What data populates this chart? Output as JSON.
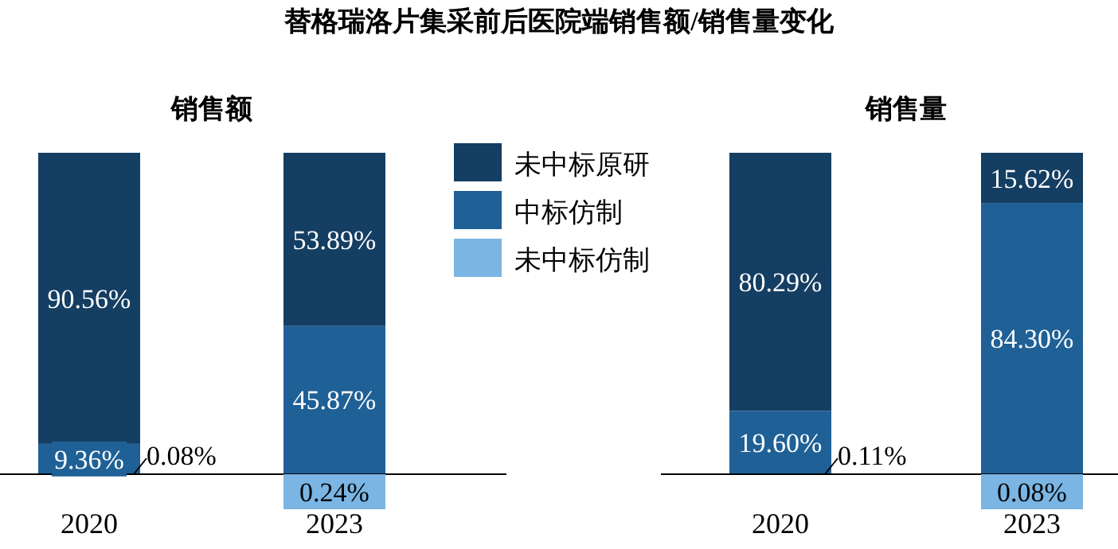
{
  "chart_data": [
    {
      "type": "bar",
      "stacked": true,
      "title": "销售额",
      "annotations": [
        "替格瑞洛片集采前后医院端销售额/销售量变化"
      ],
      "categories": [
        "2020",
        "2023"
      ],
      "ylim": [
        0,
        100
      ],
      "tick_labels": "x",
      "legend": "right",
      "series": [
        {
          "name": "未中标仿制",
          "color": "#7ab5e3",
          "values": [
            0.08,
            0.24
          ],
          "value_labels": [
            "0.08%",
            "0.24%"
          ]
        },
        {
          "name": "中标仿制",
          "color": "#1f6096",
          "values": [
            9.36,
            45.87
          ],
          "value_labels": [
            "9.36%",
            "45.87%"
          ]
        },
        {
          "name": "未中标原研",
          "color": "#143e62",
          "values": [
            90.56,
            53.89
          ],
          "value_labels": [
            "90.56%",
            "53.89%"
          ]
        }
      ]
    },
    {
      "type": "bar",
      "stacked": true,
      "title": "销售量",
      "categories": [
        "2020",
        "2023"
      ],
      "ylim": [
        0,
        100
      ],
      "tick_labels": "x",
      "series": [
        {
          "color": "#7ab5e3",
          "values": [
            0.11,
            0.08
          ],
          "value_labels": [
            "0.11%",
            "0.08%"
          ]
        },
        {
          "color": "#1f6096",
          "values": [
            19.6,
            84.3
          ],
          "value_labels": [
            "19.60%",
            "84.30%"
          ]
        },
        {
          "color": "#143e62",
          "values": [
            80.29,
            15.62
          ],
          "value_labels": [
            "80.29%",
            "15.62%"
          ]
        }
      ]
    }
  ]
}
